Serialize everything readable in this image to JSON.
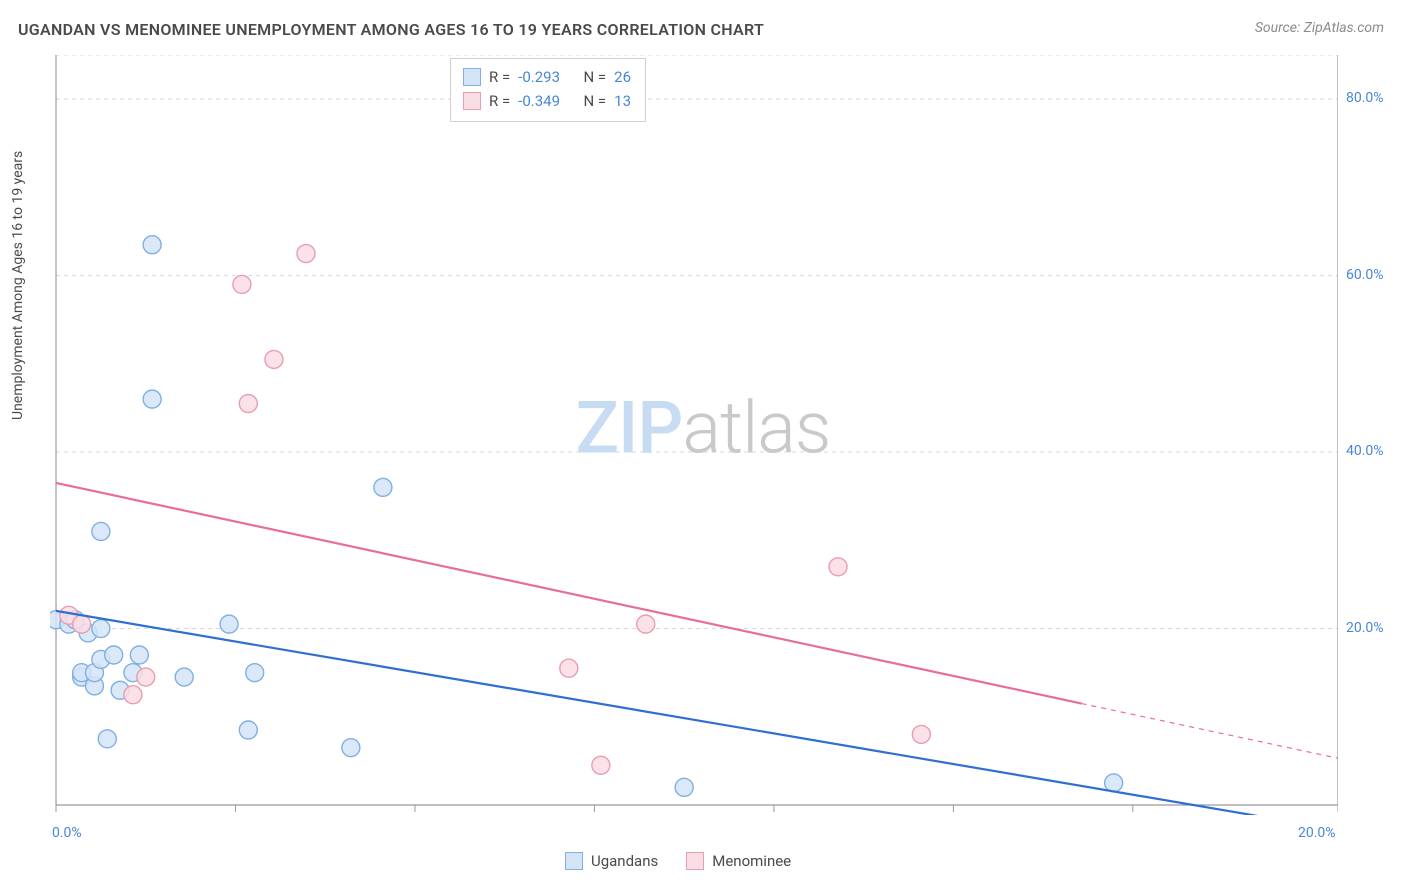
{
  "title": "UGANDAN VS MENOMINEE UNEMPLOYMENT AMONG AGES 16 TO 19 YEARS CORRELATION CHART",
  "source_label": "Source: ",
  "source_name": "ZipAtlas.com",
  "watermark_zip": "ZIP",
  "watermark_atlas": "atlas",
  "y_axis_label": "Unemployment Among Ages 16 to 19 years",
  "chart": {
    "type": "scatter",
    "background_color": "#ffffff",
    "grid_color": "#d8d8d8",
    "axis_color": "#9a9a9a",
    "tick_label_color": "#4a86d8",
    "xlim": [
      0,
      20
    ],
    "ylim": [
      0,
      85
    ],
    "x_ticks": [
      0,
      2.8,
      5.6,
      8.4,
      11.2,
      14.0,
      16.8,
      20.0
    ],
    "x_tick_labels": [
      "0.0%",
      "",
      "",
      "",
      "",
      "",
      "",
      "20.0%"
    ],
    "y_ticks": [
      20,
      40,
      60,
      80
    ],
    "y_tick_labels": [
      "20.0%",
      "40.0%",
      "60.0%",
      "80.0%"
    ],
    "marker_radius": 9,
    "marker_stroke_width": 1.4,
    "trend_line_width": 2.2,
    "series": [
      {
        "name": "Ugandans",
        "fill": "#d4e4f7",
        "stroke": "#7fb0e2",
        "line_color": "#2f6fd0",
        "R": "-0.293",
        "N": "26",
        "points": [
          [
            0.0,
            21.0
          ],
          [
            0.2,
            20.5
          ],
          [
            0.3,
            21.0
          ],
          [
            0.4,
            14.5
          ],
          [
            0.4,
            15.0
          ],
          [
            0.5,
            19.5
          ],
          [
            0.6,
            13.5
          ],
          [
            0.6,
            15.0
          ],
          [
            0.7,
            16.5
          ],
          [
            0.7,
            20.0
          ],
          [
            0.7,
            31.0
          ],
          [
            0.8,
            7.5
          ],
          [
            0.9,
            17.0
          ],
          [
            1.0,
            13.0
          ],
          [
            1.2,
            15.0
          ],
          [
            1.3,
            17.0
          ],
          [
            1.5,
            63.5
          ],
          [
            1.5,
            46.0
          ],
          [
            2.0,
            14.5
          ],
          [
            2.7,
            20.5
          ],
          [
            3.0,
            8.5
          ],
          [
            3.1,
            15.0
          ],
          [
            4.6,
            6.5
          ],
          [
            5.1,
            36.0
          ],
          [
            9.8,
            2.0
          ],
          [
            16.5,
            2.5
          ]
        ],
        "trend": {
          "x1": 0,
          "y1": 22.0,
          "x2": 20.0,
          "y2": -2.8
        }
      },
      {
        "name": "Menominee",
        "fill": "#f9dde4",
        "stroke": "#e99cb2",
        "line_color": "#e86f91",
        "R": "-0.349",
        "N": "13",
        "points": [
          [
            0.2,
            21.5
          ],
          [
            0.4,
            20.5
          ],
          [
            1.2,
            12.5
          ],
          [
            1.4,
            14.5
          ],
          [
            2.9,
            59.0
          ],
          [
            3.0,
            45.5
          ],
          [
            3.4,
            50.5
          ],
          [
            3.9,
            62.5
          ],
          [
            8.0,
            15.5
          ],
          [
            8.5,
            4.5
          ],
          [
            9.2,
            20.5
          ],
          [
            12.2,
            27.0
          ],
          [
            13.5,
            8.0
          ]
        ],
        "trend_solid": {
          "x1": 0,
          "y1": 36.5,
          "x2": 16.0,
          "y2": 11.5
        },
        "trend_dash": {
          "x1": 16.0,
          "y1": 11.5,
          "x2": 20.0,
          "y2": 5.3
        }
      }
    ]
  },
  "stats_box": {
    "rows": [
      {
        "swatch_fill": "#d4e4f7",
        "swatch_stroke": "#7fb0e2",
        "R_label": "R =",
        "R": "-0.293",
        "N_label": "N =",
        "N": "26"
      },
      {
        "swatch_fill": "#f9dde4",
        "swatch_stroke": "#e99cb2",
        "R_label": "R =",
        "R": "-0.349",
        "N_label": "N =",
        "N": "13"
      }
    ]
  },
  "bottom_legend": [
    {
      "swatch_fill": "#d4e4f7",
      "swatch_stroke": "#7fb0e2",
      "label": "Ugandans"
    },
    {
      "swatch_fill": "#f9dde4",
      "swatch_stroke": "#e99cb2",
      "label": "Menominee"
    }
  ]
}
